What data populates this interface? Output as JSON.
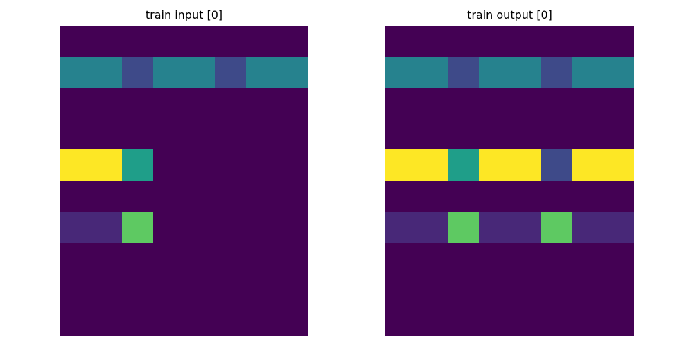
{
  "palette": {
    "0": "#440154",
    "1": "#482878",
    "2": "#3e4a89",
    "4": "#26828e",
    "5": "#1f9e89",
    "7": "#5ec962",
    "9": "#fde725"
  },
  "chart_data": [
    {
      "type": "heatmap",
      "title": "train input [0]",
      "rows": 10,
      "cols": 8,
      "grid": [
        [
          0,
          0,
          0,
          0,
          0,
          0,
          0,
          0
        ],
        [
          4,
          4,
          2,
          4,
          4,
          2,
          4,
          4
        ],
        [
          0,
          0,
          0,
          0,
          0,
          0,
          0,
          0
        ],
        [
          0,
          0,
          0,
          0,
          0,
          0,
          0,
          0
        ],
        [
          9,
          9,
          5,
          0,
          0,
          0,
          0,
          0
        ],
        [
          0,
          0,
          0,
          0,
          0,
          0,
          0,
          0
        ],
        [
          1,
          1,
          7,
          0,
          0,
          0,
          0,
          0
        ],
        [
          0,
          0,
          0,
          0,
          0,
          0,
          0,
          0
        ],
        [
          0,
          0,
          0,
          0,
          0,
          0,
          0,
          0
        ],
        [
          0,
          0,
          0,
          0,
          0,
          0,
          0,
          0
        ]
      ],
      "axes": "off"
    },
    {
      "type": "heatmap",
      "title": "train output [0]",
      "rows": 10,
      "cols": 8,
      "grid": [
        [
          0,
          0,
          0,
          0,
          0,
          0,
          0,
          0
        ],
        [
          4,
          4,
          2,
          4,
          4,
          2,
          4,
          4
        ],
        [
          0,
          0,
          0,
          0,
          0,
          0,
          0,
          0
        ],
        [
          0,
          0,
          0,
          0,
          0,
          0,
          0,
          0
        ],
        [
          9,
          9,
          5,
          9,
          9,
          2,
          9,
          9
        ],
        [
          0,
          0,
          0,
          0,
          0,
          0,
          0,
          0
        ],
        [
          1,
          1,
          7,
          1,
          1,
          7,
          1,
          1
        ],
        [
          0,
          0,
          0,
          0,
          0,
          0,
          0,
          0
        ],
        [
          0,
          0,
          0,
          0,
          0,
          0,
          0,
          0
        ],
        [
          0,
          0,
          0,
          0,
          0,
          0,
          0,
          0
        ]
      ],
      "axes": "off"
    }
  ]
}
